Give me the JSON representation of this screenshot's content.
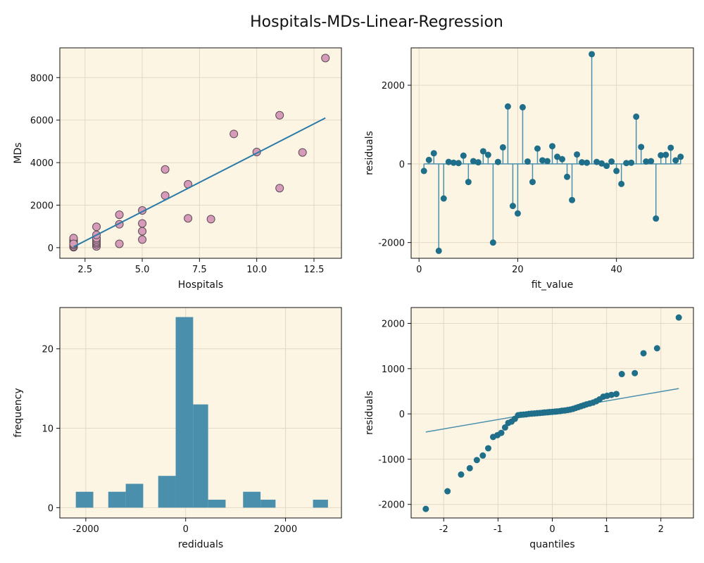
{
  "figure": {
    "title": "Hospitals-MDs-Linear-Regression"
  },
  "colors": {
    "panel_bg": "#fdf5e4",
    "series": "#1f6f8b",
    "hist": "#4a90ad",
    "scatter_fill": "#d59bb8",
    "scatter_edge": "#5b4a55",
    "fit_line": "#2a7ba8",
    "grid": "#e2d8c4"
  },
  "chart_data": [
    {
      "id": "scatter",
      "type": "scatter",
      "xlabel": "Hospitals",
      "ylabel": "MDs",
      "xlim": [
        1.4,
        13.7
      ],
      "ylim": [
        -500,
        9400
      ],
      "xticks": [
        2.5,
        5.0,
        7.5,
        10.0,
        12.5
      ],
      "xtick_labels": [
        "2.5",
        "5.0",
        "7.5",
        "10.0",
        "12.5"
      ],
      "yticks": [
        0,
        2000,
        4000,
        6000,
        8000
      ],
      "ytick_labels": [
        "0",
        "2000",
        "4000",
        "6000",
        "8000"
      ],
      "grid": true,
      "points": [
        [
          2,
          20
        ],
        [
          2,
          60
        ],
        [
          2,
          100
        ],
        [
          2,
          150
        ],
        [
          2,
          200
        ],
        [
          2,
          250
        ],
        [
          2,
          300
        ],
        [
          2,
          350
        ],
        [
          2,
          400
        ],
        [
          2,
          450
        ],
        [
          2,
          50
        ],
        [
          2,
          120
        ],
        [
          2,
          180
        ],
        [
          3,
          60
        ],
        [
          3,
          160
        ],
        [
          3,
          230
        ],
        [
          3,
          300
        ],
        [
          3,
          380
        ],
        [
          3,
          450
        ],
        [
          3,
          600
        ],
        [
          3,
          980
        ],
        [
          4,
          180
        ],
        [
          4,
          1100
        ],
        [
          4,
          1550
        ],
        [
          5,
          380
        ],
        [
          5,
          770
        ],
        [
          5,
          1140
        ],
        [
          5,
          1750
        ],
        [
          6,
          2450
        ],
        [
          6,
          3680
        ],
        [
          7,
          1380
        ],
        [
          7,
          2980
        ],
        [
          8,
          1340
        ],
        [
          9,
          5350
        ],
        [
          10,
          4500
        ],
        [
          11,
          2800
        ],
        [
          11,
          6230
        ],
        [
          12,
          4480
        ],
        [
          13,
          8920
        ]
      ],
      "fit_line": {
        "x": [
          2,
          13
        ],
        "y": [
          40,
          6100
        ]
      }
    },
    {
      "id": "stem",
      "type": "stem",
      "xlabel": "fit_value",
      "ylabel": "residuals",
      "xlim": [
        -1.6,
        55.6
      ],
      "ylim": [
        -2400,
        2950
      ],
      "xticks": [
        0,
        20,
        40
      ],
      "xtick_labels": [
        "0",
        "20",
        "40"
      ],
      "yticks": [
        -2000,
        0,
        2000
      ],
      "ytick_labels": [
        "-2000",
        "0",
        "2000"
      ],
      "grid": true,
      "x": [
        1,
        2,
        3,
        4,
        5,
        6,
        7,
        8,
        9,
        10,
        11,
        12,
        13,
        14,
        15,
        16,
        17,
        18,
        19,
        20,
        21,
        22,
        23,
        24,
        25,
        26,
        27,
        28,
        29,
        30,
        31,
        32,
        33,
        34,
        35,
        36,
        37,
        38,
        39,
        40,
        41,
        42,
        43,
        44,
        45,
        46,
        47,
        48,
        49,
        50,
        51,
        52,
        53
      ],
      "y": [
        -180,
        100,
        270,
        -2210,
        -880,
        50,
        30,
        20,
        210,
        -460,
        70,
        40,
        320,
        230,
        -2000,
        50,
        420,
        1460,
        -1070,
        -1260,
        1440,
        60,
        -460,
        390,
        90,
        70,
        450,
        180,
        120,
        -330,
        -920,
        240,
        40,
        30,
        2790,
        50,
        10,
        -50,
        60,
        -180,
        -510,
        20,
        30,
        1200,
        430,
        60,
        70,
        -1390,
        220,
        230,
        410,
        90,
        180
      ]
    },
    {
      "id": "hist",
      "type": "bar",
      "xlabel": "rediduals",
      "ylabel": "frequency",
      "xlim": [
        -2520,
        3120
      ],
      "ylim": [
        -1.3,
        25.2
      ],
      "xticks": [
        -2000,
        0,
        2000
      ],
      "xtick_labels": [
        "-2000",
        "0",
        "2000"
      ],
      "yticks": [
        0,
        10,
        20
      ],
      "ytick_labels": [
        "0",
        "10",
        "20"
      ],
      "grid": true,
      "bins": [
        {
          "from": -2200,
          "to": -1850,
          "count": 2
        },
        {
          "from": -1550,
          "to": -1200,
          "count": 2
        },
        {
          "from": -1200,
          "to": -850,
          "count": 3
        },
        {
          "from": -550,
          "to": -200,
          "count": 4
        },
        {
          "from": -200,
          "to": 150,
          "count": 24
        },
        {
          "from": 150,
          "to": 450,
          "count": 13
        },
        {
          "from": 450,
          "to": 800,
          "count": 1
        },
        {
          "from": 1150,
          "to": 1500,
          "count": 2
        },
        {
          "from": 1500,
          "to": 1800,
          "count": 1
        },
        {
          "from": 2550,
          "to": 2850,
          "count": 1
        }
      ]
    },
    {
      "id": "qq",
      "type": "scatter",
      "xlabel": "quantiles",
      "ylabel": "residuals",
      "xlim": [
        -2.6,
        2.6
      ],
      "ylim": [
        -2300,
        2350
      ],
      "xticks": [
        -2,
        -1,
        0,
        1,
        2
      ],
      "xtick_labels": [
        "-2",
        "-1",
        "0",
        "1",
        "2"
      ],
      "yticks": [
        -2000,
        -1000,
        0,
        1000,
        2000
      ],
      "ytick_labels": [
        "-2000",
        "-1000",
        "0",
        "1000",
        "2000"
      ],
      "grid": true,
      "points": [
        [
          -2.33,
          -2100
        ],
        [
          -1.93,
          -1710
        ],
        [
          -1.68,
          -1340
        ],
        [
          -1.52,
          -1200
        ],
        [
          -1.39,
          -1020
        ],
        [
          -1.28,
          -920
        ],
        [
          -1.18,
          -760
        ],
        [
          -1.09,
          -510
        ],
        [
          -1.01,
          -470
        ],
        [
          -0.94,
          -420
        ],
        [
          -0.87,
          -300
        ],
        [
          -0.81,
          -200
        ],
        [
          -0.75,
          -170
        ],
        [
          -0.69,
          -110
        ],
        [
          -0.63,
          -30
        ],
        [
          -0.58,
          -20
        ],
        [
          -0.53,
          -15
        ],
        [
          -0.48,
          -10
        ],
        [
          -0.43,
          0
        ],
        [
          -0.38,
          5
        ],
        [
          -0.33,
          10
        ],
        [
          -0.28,
          15
        ],
        [
          -0.23,
          20
        ],
        [
          -0.18,
          25
        ],
        [
          -0.14,
          30
        ],
        [
          -0.09,
          35
        ],
        [
          -0.05,
          40
        ],
        [
          0,
          45
        ],
        [
          0.05,
          50
        ],
        [
          0.09,
          55
        ],
        [
          0.14,
          60
        ],
        [
          0.18,
          70
        ],
        [
          0.23,
          75
        ],
        [
          0.28,
          85
        ],
        [
          0.33,
          95
        ],
        [
          0.38,
          110
        ],
        [
          0.43,
          130
        ],
        [
          0.48,
          150
        ],
        [
          0.53,
          170
        ],
        [
          0.58,
          190
        ],
        [
          0.63,
          210
        ],
        [
          0.69,
          230
        ],
        [
          0.75,
          250
        ],
        [
          0.81,
          280
        ],
        [
          0.87,
          320
        ],
        [
          0.94,
          380
        ],
        [
          1.01,
          400
        ],
        [
          1.09,
          420
        ],
        [
          1.18,
          440
        ],
        [
          1.28,
          880
        ],
        [
          1.52,
          900
        ],
        [
          1.68,
          1340
        ],
        [
          1.93,
          1450
        ],
        [
          2.33,
          2130
        ]
      ],
      "ref_line": {
        "x": [
          -2.33,
          2.33
        ],
        "y": [
          -400,
          560
        ]
      }
    }
  ]
}
